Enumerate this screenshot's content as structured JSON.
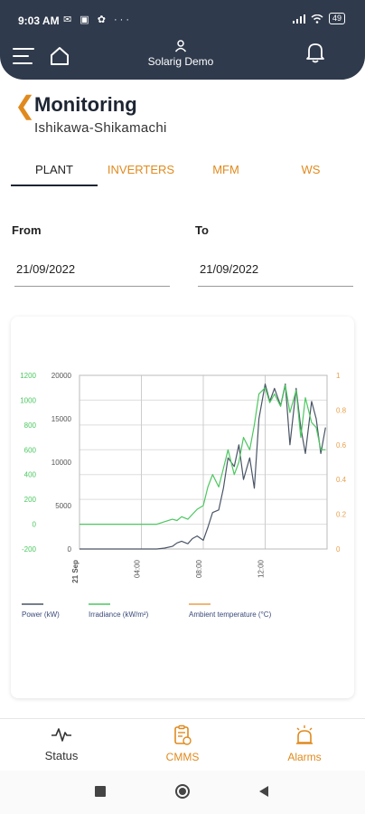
{
  "status_bar": {
    "time": "9:03 AM",
    "battery": "49"
  },
  "header": {
    "user_name": "Solarig Demo"
  },
  "page": {
    "title": "Monitoring",
    "subtitle": "Ishikawa-Shikamachi"
  },
  "tabs": [
    {
      "label": "PLANT",
      "active": true
    },
    {
      "label": "INVERTERS",
      "active": false
    },
    {
      "label": "MFM",
      "active": false
    },
    {
      "label": "WS",
      "active": false
    }
  ],
  "date_range": {
    "from_label": "From",
    "from_value": "21/09/2022",
    "to_label": "To",
    "to_value": "21/09/2022"
  },
  "colors": {
    "accent": "#e08a1e",
    "header_bg": "#2f3a4c",
    "power": "#4a5566",
    "irradiance": "#4cc760",
    "ambient": "#e8a04c"
  },
  "chart_data": {
    "type": "line",
    "y_axes": [
      {
        "ticks": [
          "1200",
          "1000",
          "800",
          "600",
          "400",
          "200",
          "0",
          "-200"
        ],
        "range": [
          -200,
          1200
        ],
        "color": "#4cc760"
      },
      {
        "ticks": [
          "20000",
          "15000",
          "10000",
          "5000",
          "0"
        ],
        "range": [
          0,
          20000
        ],
        "color": "#555555"
      },
      {
        "ticks": [
          "1",
          "0.8",
          "0.6",
          "0.4",
          "0.2",
          "0"
        ],
        "range": [
          0,
          1
        ],
        "color": "#e8a04c"
      }
    ],
    "x_ticks": [
      "21 Sep",
      "04:00",
      "08:00",
      "12:00"
    ],
    "x_hours": [
      0,
      4,
      8,
      12
    ],
    "x_range": [
      0,
      16
    ],
    "series": [
      {
        "name": "Power (kW)",
        "axis": 1,
        "x": [
          0,
          4,
          5,
          5.5,
          6,
          6.3,
          6.6,
          7,
          7.3,
          7.6,
          8,
          8.3,
          8.6,
          9,
          9.3,
          9.6,
          10,
          10.3,
          10.6,
          11,
          11.3,
          11.6,
          12,
          12.3,
          12.6,
          13,
          13.3,
          13.6,
          14,
          14.3,
          14.6,
          15,
          15.3,
          15.6,
          15.9
        ],
        "y": [
          0,
          0,
          0,
          100,
          300,
          700,
          900,
          600,
          1200,
          1500,
          1000,
          2500,
          4200,
          4500,
          7000,
          10500,
          9500,
          12000,
          8000,
          10500,
          7000,
          15000,
          19000,
          17000,
          18500,
          16500,
          19000,
          12000,
          18500,
          14000,
          11000,
          17000,
          15000,
          11000,
          14000
        ]
      },
      {
        "name": "Irradiance (kW/m2)",
        "axis": 0,
        "x": [
          0,
          4,
          5,
          5.5,
          6,
          6.3,
          6.6,
          7,
          7.3,
          7.6,
          8,
          8.3,
          8.6,
          9,
          9.3,
          9.6,
          10,
          10.3,
          10.6,
          11,
          11.3,
          11.6,
          12,
          12.3,
          12.6,
          13,
          13.3,
          13.6,
          14,
          14.3,
          14.6,
          15,
          15.3,
          15.6,
          15.9
        ],
        "y": [
          0,
          0,
          0,
          20,
          40,
          30,
          60,
          40,
          80,
          120,
          150,
          300,
          400,
          300,
          450,
          600,
          400,
          500,
          700,
          600,
          800,
          1050,
          1100,
          980,
          1050,
          950,
          1120,
          900,
          1080,
          700,
          1020,
          820,
          780,
          600,
          600
        ]
      }
    ],
    "legend": [
      {
        "label": "Power (kW)",
        "color": "#4a5566"
      },
      {
        "label": "Irradiance (kW/m²)",
        "color": "#4cc760"
      },
      {
        "label": "Ambient temperature (°C)",
        "color": "#e8a04c"
      }
    ]
  },
  "bottom_nav": [
    {
      "label": "Status",
      "icon": "pulse-icon",
      "color": "#333333"
    },
    {
      "label": "CMMS",
      "icon": "clipboard-icon",
      "color": "#e08a1e"
    },
    {
      "label": "Alarms",
      "icon": "siren-icon",
      "color": "#e08a1e"
    }
  ]
}
